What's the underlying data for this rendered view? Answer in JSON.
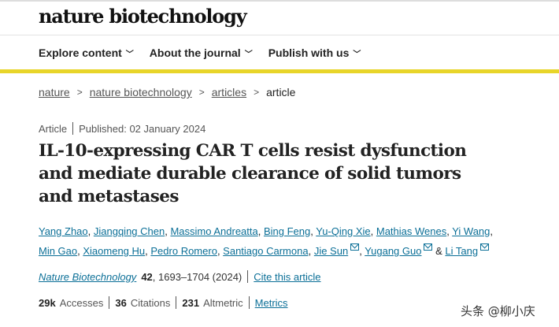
{
  "header": {
    "logo": "nature biotechnology",
    "nav": [
      {
        "label": "Explore content"
      },
      {
        "label": "About the journal"
      },
      {
        "label": "Publish with us"
      }
    ],
    "accent_color": "#e8d52a"
  },
  "breadcrumb": [
    {
      "label": "nature"
    },
    {
      "label": "nature biotechnology"
    },
    {
      "label": "articles"
    },
    {
      "label": "article"
    }
  ],
  "article": {
    "type": "Article",
    "published": "Published: 02 January 2024",
    "title": "IL-10-expressing CAR T cells resist dysfunction and mediate durable clearance of solid tumors and metastases",
    "authors": [
      {
        "name": "Yang Zhao"
      },
      {
        "name": "Jiangqing Chen"
      },
      {
        "name": "Massimo Andreatta"
      },
      {
        "name": "Bing Feng"
      },
      {
        "name": "Yu-Qing Xie"
      },
      {
        "name": "Mathias Wenes"
      },
      {
        "name": "Yi Wang"
      },
      {
        "name": "Min Gao"
      },
      {
        "name": "Xiaomeng Hu"
      },
      {
        "name": "Pedro Romero"
      },
      {
        "name": "Santiago Carmona"
      },
      {
        "name": "Jie Sun",
        "email": true
      },
      {
        "name": "Yugang Guo",
        "email": true
      },
      {
        "name": "Li Tang",
        "email": true
      }
    ],
    "and": "&",
    "journal": "Nature Biotechnology",
    "volume": "42",
    "pages": ", 1693–1704 (2024)",
    "cite_label": "Cite this article",
    "metrics": [
      {
        "value": "29k",
        "label": "Accesses"
      },
      {
        "value": "36",
        "label": "Citations"
      },
      {
        "value": "231",
        "label": "Altmetric"
      }
    ],
    "metrics_link": "Metrics"
  },
  "watermark": "头条 @柳小庆",
  "link_color": "#0b6f97"
}
